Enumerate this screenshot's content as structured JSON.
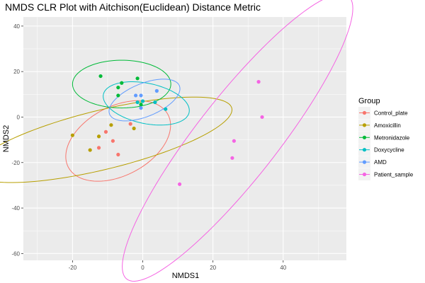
{
  "chart_data": {
    "type": "scatter",
    "title": "NMDS CLR Plot with Aitchison(Euclidean) Distance Metric",
    "xlabel": "NMDS1",
    "ylabel": "NMDS2",
    "xlim": [
      -34,
      58
    ],
    "ylim": [
      -63,
      44
    ],
    "xticks": [
      -20,
      0,
      20,
      40
    ],
    "yticks": [
      -60,
      -40,
      -20,
      0,
      20,
      40
    ],
    "grid": true,
    "legend": {
      "title": "Group",
      "position": "right"
    },
    "series": [
      {
        "name": "Control_plate",
        "color": "#F8766D",
        "points": [
          [
            -12.5,
            -13.5
          ],
          [
            -10.5,
            -6.5
          ],
          [
            -8.5,
            -10.5
          ],
          [
            -7,
            -16.5
          ],
          [
            -3.5,
            -3
          ]
        ],
        "ellipse": {
          "cx": -7,
          "cy": -10.5,
          "rx": 19.5,
          "ry": 12.5,
          "angle": 57
        }
      },
      {
        "name": "Amoxicillin",
        "color": "#B79F00",
        "points": [
          [
            -20,
            -8
          ],
          [
            -15,
            -14.5
          ],
          [
            -12.5,
            -8.5
          ],
          [
            -9,
            -3.5
          ],
          [
            -2.5,
            -5
          ]
        ],
        "ellipse": {
          "cx": -11.5,
          "cy": -10,
          "rx": 39.5,
          "ry": 12.5,
          "angle": 22
        }
      },
      {
        "name": "Metronidazole",
        "color": "#00BA38",
        "points": [
          [
            -12,
            18
          ],
          [
            -7,
            13
          ],
          [
            -6,
            15
          ],
          [
            -7,
            9.5
          ],
          [
            -1.5,
            17
          ],
          [
            -0.5,
            5.5
          ]
        ],
        "ellipse": {
          "cx": -6,
          "cy": 14.5,
          "rx": 14,
          "ry": 10.5,
          "angle": 0
        }
      },
      {
        "name": "Doxycycline",
        "color": "#00BFC4",
        "points": [
          [
            -1.5,
            6.5
          ],
          [
            0,
            7
          ],
          [
            3.5,
            6.5
          ],
          [
            6.5,
            3.5
          ]
        ],
        "ellipse": {
          "cx": 1,
          "cy": 6,
          "rx": 13,
          "ry": 8.5,
          "angle": -26
        }
      },
      {
        "name": "AMD",
        "color": "#619CFF",
        "points": [
          [
            -2,
            9.5
          ],
          [
            -0.5,
            9.5
          ],
          [
            -0.5,
            4
          ],
          [
            4,
            11.5
          ]
        ],
        "ellipse": {
          "cx": 0.5,
          "cy": 7.5,
          "rx": 12,
          "ry": 6.5,
          "angle": 40
        }
      },
      {
        "name": "Patient_sample",
        "color": "#F564E3",
        "points": [
          [
            33,
            15.5
          ],
          [
            34,
            0
          ],
          [
            26,
            -10.5
          ],
          [
            25.5,
            -18
          ],
          [
            10.5,
            -29.5
          ]
        ],
        "ellipse": {
          "cx": 27,
          "cy": -9,
          "rx": 70,
          "ry": 13,
          "angle": 64
        }
      }
    ]
  }
}
